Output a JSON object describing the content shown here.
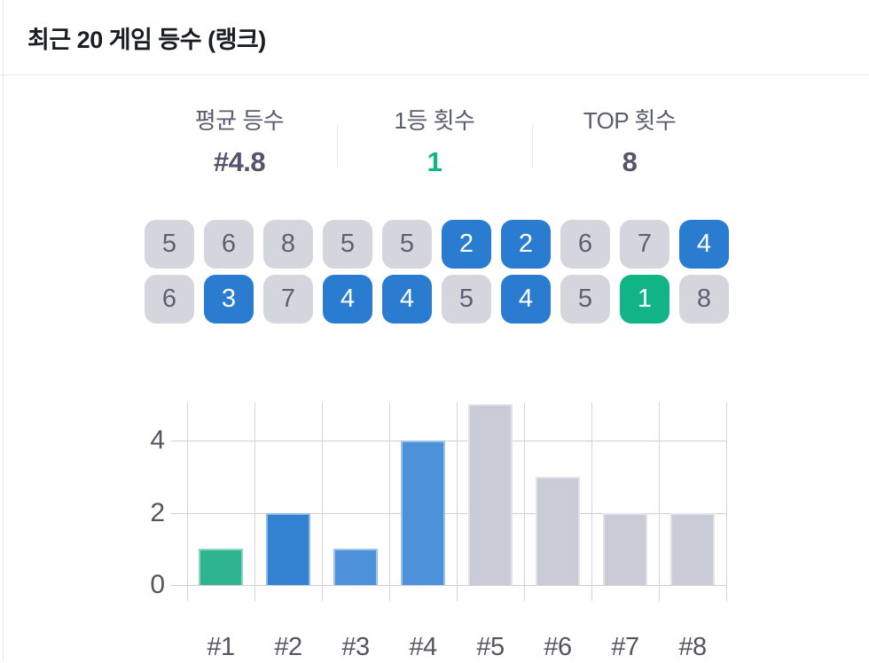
{
  "header": {
    "title": "최근 20 게임 등수 (랭크)"
  },
  "stats": {
    "items": [
      {
        "label": "평균 등수",
        "value": "#4.8",
        "value_color": "#54556a"
      },
      {
        "label": "1등 횟수",
        "value": "1",
        "value_color": "#10b485"
      },
      {
        "label": "TOP 횟수",
        "value": "8",
        "value_color": "#54556a"
      }
    ]
  },
  "recent_ranks": {
    "rows": [
      [
        {
          "v": "5",
          "s": "gray"
        },
        {
          "v": "6",
          "s": "gray"
        },
        {
          "v": "8",
          "s": "gray"
        },
        {
          "v": "5",
          "s": "gray"
        },
        {
          "v": "5",
          "s": "gray"
        },
        {
          "v": "2",
          "s": "blue"
        },
        {
          "v": "2",
          "s": "blue"
        },
        {
          "v": "6",
          "s": "gray"
        },
        {
          "v": "7",
          "s": "gray"
        },
        {
          "v": "4",
          "s": "blue"
        }
      ],
      [
        {
          "v": "6",
          "s": "gray"
        },
        {
          "v": "3",
          "s": "blue"
        },
        {
          "v": "7",
          "s": "gray"
        },
        {
          "v": "4",
          "s": "blue"
        },
        {
          "v": "4",
          "s": "blue"
        },
        {
          "v": "5",
          "s": "gray"
        },
        {
          "v": "4",
          "s": "blue"
        },
        {
          "v": "5",
          "s": "gray"
        },
        {
          "v": "1",
          "s": "green"
        },
        {
          "v": "8",
          "s": "gray"
        }
      ]
    ],
    "tile_colors": {
      "gray": {
        "bg": "#d5d6dd",
        "fg": "#5e5f72"
      },
      "blue": {
        "bg": "#2a7cd0",
        "fg": "#ffffff"
      },
      "green": {
        "bg": "#10b485",
        "fg": "#ffffff"
      }
    }
  },
  "chart_data": {
    "type": "bar",
    "title": "",
    "xlabel": "",
    "ylabel": "",
    "categories": [
      "#1",
      "#2",
      "#3",
      "#4",
      "#5",
      "#6",
      "#7",
      "#8"
    ],
    "values": [
      1,
      2,
      1,
      4,
      5,
      3,
      2,
      2
    ],
    "bar_colors": [
      "#2fb491",
      "#3282d0",
      "#4d92d8",
      "#4d92d8",
      "#c9cbd6",
      "#c9cbd6",
      "#c9cbd6",
      "#c9cbd6"
    ],
    "yticks": [
      0,
      2,
      4
    ],
    "ylim": [
      0,
      5.05
    ],
    "grid": true,
    "legend": false
  },
  "accent_colors": {
    "green": "#10b485",
    "blue": "#2a7cd0",
    "gray": "#c9cbd6"
  }
}
